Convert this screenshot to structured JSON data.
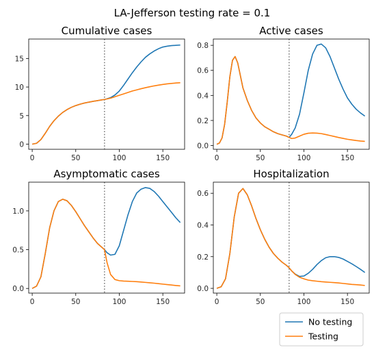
{
  "figure": {
    "suptitle": "LA-Jefferson testing rate = 0.1",
    "intervention_day": 83
  },
  "legend": {
    "placement": "bottom-right",
    "entries": [
      {
        "name": "No testing",
        "color": "#1f77b4"
      },
      {
        "name": "Testing",
        "color": "#ff7f0e"
      }
    ]
  },
  "chart_data": [
    {
      "type": "line",
      "title": "Cumulative cases",
      "xlim": [
        -4,
        175
      ],
      "ylim": [
        -0.9,
        18.4
      ],
      "xticks": [
        0,
        50,
        100,
        150
      ],
      "yticks": [
        0,
        5,
        10,
        15
      ],
      "vline_x": 83,
      "series": [
        {
          "name": "No testing",
          "color": "#1f77b4",
          "x": [
            0,
            5,
            10,
            15,
            20,
            25,
            30,
            35,
            40,
            45,
            50,
            55,
            60,
            65,
            70,
            75,
            80,
            83,
            85,
            90,
            95,
            100,
            105,
            110,
            115,
            120,
            125,
            130,
            135,
            140,
            145,
            150,
            155,
            160,
            165,
            170
          ],
          "y": [
            0,
            0.15,
            0.8,
            1.9,
            3.1,
            4.1,
            4.9,
            5.55,
            6.05,
            6.45,
            6.75,
            7.0,
            7.2,
            7.35,
            7.5,
            7.62,
            7.75,
            7.82,
            7.9,
            8.15,
            8.6,
            9.3,
            10.3,
            11.4,
            12.5,
            13.5,
            14.4,
            15.2,
            15.8,
            16.3,
            16.7,
            17.0,
            17.15,
            17.25,
            17.3,
            17.35
          ]
        },
        {
          "name": "Testing",
          "color": "#ff7f0e",
          "x": [
            0,
            5,
            10,
            15,
            20,
            25,
            30,
            35,
            40,
            45,
            50,
            55,
            60,
            65,
            70,
            75,
            80,
            83,
            85,
            90,
            95,
            100,
            105,
            110,
            115,
            120,
            125,
            130,
            135,
            140,
            145,
            150,
            155,
            160,
            165,
            170
          ],
          "y": [
            0,
            0.15,
            0.8,
            1.9,
            3.1,
            4.1,
            4.9,
            5.55,
            6.05,
            6.45,
            6.75,
            7.0,
            7.2,
            7.35,
            7.5,
            7.62,
            7.75,
            7.82,
            7.88,
            8.05,
            8.3,
            8.55,
            8.8,
            9.05,
            9.3,
            9.5,
            9.7,
            9.88,
            10.05,
            10.2,
            10.33,
            10.45,
            10.55,
            10.63,
            10.7,
            10.75
          ]
        }
      ]
    },
    {
      "type": "line",
      "title": "Active cases",
      "xlim": [
        -4,
        175
      ],
      "ylim": [
        -0.03,
        0.85
      ],
      "xticks": [
        0,
        50,
        100,
        150
      ],
      "yticks": [
        0.0,
        0.2,
        0.4,
        0.6,
        0.8
      ],
      "vline_x": 83,
      "series": [
        {
          "name": "No testing",
          "color": "#1f77b4",
          "x": [
            0,
            3,
            6,
            9,
            12,
            15,
            18,
            21,
            24,
            27,
            30,
            35,
            40,
            45,
            50,
            55,
            60,
            65,
            70,
            75,
            80,
            83,
            86,
            90,
            95,
            100,
            105,
            110,
            115,
            120,
            125,
            130,
            135,
            140,
            145,
            150,
            155,
            160,
            165,
            170
          ],
          "y": [
            0.01,
            0.02,
            0.06,
            0.17,
            0.35,
            0.55,
            0.68,
            0.71,
            0.66,
            0.56,
            0.46,
            0.36,
            0.28,
            0.22,
            0.18,
            0.15,
            0.13,
            0.11,
            0.095,
            0.085,
            0.075,
            0.065,
            0.09,
            0.14,
            0.25,
            0.42,
            0.6,
            0.73,
            0.8,
            0.81,
            0.78,
            0.71,
            0.62,
            0.53,
            0.45,
            0.38,
            0.33,
            0.29,
            0.26,
            0.235
          ]
        },
        {
          "name": "Testing",
          "color": "#ff7f0e",
          "x": [
            0,
            3,
            6,
            9,
            12,
            15,
            18,
            21,
            24,
            27,
            30,
            35,
            40,
            45,
            50,
            55,
            60,
            65,
            70,
            75,
            80,
            83,
            86,
            90,
            95,
            100,
            105,
            110,
            115,
            120,
            125,
            130,
            135,
            140,
            145,
            150,
            155,
            160,
            165,
            170
          ],
          "y": [
            0.01,
            0.02,
            0.06,
            0.17,
            0.35,
            0.55,
            0.68,
            0.71,
            0.66,
            0.56,
            0.46,
            0.36,
            0.28,
            0.22,
            0.18,
            0.15,
            0.13,
            0.11,
            0.095,
            0.085,
            0.075,
            0.065,
            0.056,
            0.06,
            0.075,
            0.09,
            0.098,
            0.1,
            0.099,
            0.095,
            0.088,
            0.08,
            0.072,
            0.064,
            0.057,
            0.05,
            0.045,
            0.04,
            0.036,
            0.033
          ]
        }
      ]
    },
    {
      "type": "line",
      "title": "Asymptomatic cases",
      "xlim": [
        -4,
        175
      ],
      "ylim": [
        -0.06,
        1.37
      ],
      "xticks": [
        0,
        50,
        100,
        150
      ],
      "yticks": [
        0.0,
        0.5,
        1.0
      ],
      "vline_x": 83,
      "series": [
        {
          "name": "No testing",
          "color": "#1f77b4",
          "x": [
            0,
            5,
            10,
            15,
            20,
            25,
            30,
            35,
            40,
            45,
            50,
            55,
            60,
            65,
            70,
            75,
            80,
            83,
            86,
            90,
            95,
            100,
            105,
            110,
            115,
            120,
            125,
            130,
            135,
            140,
            145,
            150,
            155,
            160,
            165,
            170
          ],
          "y": [
            0,
            0.03,
            0.15,
            0.45,
            0.78,
            1.0,
            1.12,
            1.15,
            1.13,
            1.07,
            0.99,
            0.9,
            0.81,
            0.73,
            0.65,
            0.58,
            0.53,
            0.5,
            0.46,
            0.43,
            0.44,
            0.55,
            0.75,
            0.95,
            1.12,
            1.23,
            1.28,
            1.3,
            1.29,
            1.25,
            1.19,
            1.12,
            1.05,
            0.98,
            0.91,
            0.85
          ]
        },
        {
          "name": "Testing",
          "color": "#ff7f0e",
          "x": [
            0,
            5,
            10,
            15,
            20,
            25,
            30,
            35,
            40,
            45,
            50,
            55,
            60,
            65,
            70,
            75,
            80,
            83,
            86,
            90,
            95,
            100,
            105,
            110,
            115,
            120,
            125,
            130,
            135,
            140,
            145,
            150,
            155,
            160,
            165,
            170
          ],
          "y": [
            0,
            0.03,
            0.15,
            0.45,
            0.78,
            1.0,
            1.12,
            1.15,
            1.13,
            1.07,
            0.99,
            0.9,
            0.81,
            0.73,
            0.65,
            0.58,
            0.53,
            0.5,
            0.33,
            0.18,
            0.115,
            0.1,
            0.095,
            0.093,
            0.09,
            0.087,
            0.083,
            0.078,
            0.073,
            0.068,
            0.062,
            0.056,
            0.05,
            0.044,
            0.038,
            0.033
          ]
        }
      ]
    },
    {
      "type": "line",
      "title": "Hospitalization",
      "xlim": [
        -4,
        175
      ],
      "ylim": [
        -0.03,
        0.67
      ],
      "xticks": [
        0,
        50,
        100,
        150
      ],
      "yticks": [
        0.0,
        0.2,
        0.4,
        0.6
      ],
      "vline_x": 83,
      "series": [
        {
          "name": "No testing",
          "color": "#1f77b4",
          "x": [
            0,
            5,
            10,
            15,
            20,
            25,
            30,
            35,
            40,
            45,
            50,
            55,
            60,
            65,
            70,
            75,
            80,
            83,
            86,
            90,
            95,
            100,
            105,
            110,
            115,
            120,
            125,
            130,
            135,
            140,
            145,
            150,
            155,
            160,
            165,
            170
          ],
          "y": [
            0,
            0.01,
            0.06,
            0.22,
            0.45,
            0.6,
            0.63,
            0.59,
            0.52,
            0.44,
            0.37,
            0.31,
            0.26,
            0.22,
            0.19,
            0.165,
            0.145,
            0.13,
            0.11,
            0.09,
            0.075,
            0.078,
            0.095,
            0.12,
            0.15,
            0.175,
            0.193,
            0.2,
            0.2,
            0.195,
            0.185,
            0.17,
            0.155,
            0.138,
            0.12,
            0.1
          ]
        },
        {
          "name": "Testing",
          "color": "#ff7f0e",
          "x": [
            0,
            5,
            10,
            15,
            20,
            25,
            30,
            35,
            40,
            45,
            50,
            55,
            60,
            65,
            70,
            75,
            80,
            83,
            86,
            90,
            95,
            100,
            105,
            110,
            115,
            120,
            125,
            130,
            135,
            140,
            145,
            150,
            155,
            160,
            165,
            170
          ],
          "y": [
            0,
            0.01,
            0.06,
            0.22,
            0.45,
            0.6,
            0.63,
            0.59,
            0.52,
            0.44,
            0.37,
            0.31,
            0.26,
            0.22,
            0.19,
            0.165,
            0.145,
            0.13,
            0.11,
            0.088,
            0.07,
            0.06,
            0.052,
            0.048,
            0.045,
            0.042,
            0.04,
            0.038,
            0.036,
            0.034,
            0.031,
            0.028,
            0.025,
            0.023,
            0.021,
            0.018
          ]
        }
      ]
    }
  ]
}
